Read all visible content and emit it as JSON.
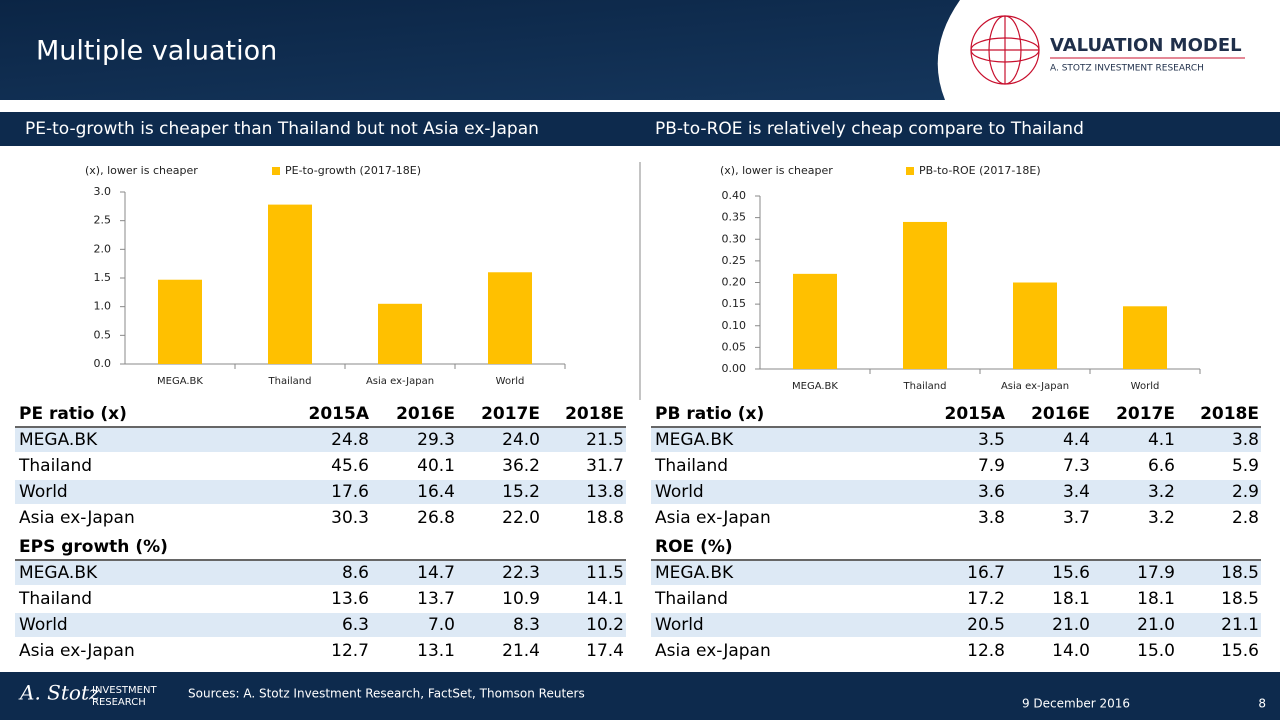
{
  "header": {
    "title": "Multiple valuation",
    "brand": "VALUATION MODEL",
    "brand_sub": "A. STOTZ INVESTMENT RESEARCH"
  },
  "chart_data": [
    {
      "type": "bar",
      "title": "PE-to-growth is cheaper than Thailand but not Asia ex-Japan",
      "y_label": "(x), lower is cheaper",
      "categories": [
        "MEGA.BK",
        "Thailand",
        "Asia ex-Japan",
        "World"
      ],
      "series": [
        {
          "name": "PE-to-growth (2017-18E)",
          "color": "#ffc000",
          "values": [
            1.47,
            2.78,
            1.05,
            1.6
          ]
        }
      ],
      "ylim": [
        0,
        3
      ],
      "yticks": [
        {
          "value": 0,
          "label": "0.0"
        },
        0.5,
        {
          "value": 1,
          "label": "1.0"
        },
        1.5,
        {
          "value": 2,
          "label": "2.0"
        },
        2.5,
        {
          "value": 3,
          "label": "3.0"
        }
      ]
    },
    {
      "type": "bar",
      "title": "PB-to-ROE is relatively cheap compare to Thailand",
      "y_label": "(x), lower is cheaper",
      "categories": [
        "MEGA.BK",
        "Thailand",
        "Asia ex-Japan",
        "World"
      ],
      "series": [
        {
          "name": "PB-to-ROE (2017-18E)",
          "color": "#ffc000",
          "values": [
            0.22,
            0.34,
            0.2,
            0.145
          ]
        }
      ],
      "ylim": [
        0,
        0.4
      ],
      "yticks": [
        {
          "value": 0,
          "label": "0.00"
        },
        0.05,
        {
          "value": 0.1,
          "label": "0.10"
        },
        0.15,
        {
          "value": 0.2,
          "label": "0.20"
        },
        0.25,
        {
          "value": 0.3,
          "label": "0.30"
        },
        0.35,
        {
          "value": 0.4,
          "label": "0.40"
        }
      ]
    }
  ],
  "tables": [
    {
      "sections": [
        {
          "header": [
            "PE ratio (x)",
            "2015A",
            "2016E",
            "2017E",
            "2018E"
          ],
          "rows": [
            [
              "MEGA.BK",
              "24.8",
              "29.3",
              "24.0",
              "21.5"
            ],
            [
              "Thailand",
              "45.6",
              "40.1",
              "36.2",
              "31.7"
            ],
            [
              "World",
              "17.6",
              "16.4",
              "15.2",
              "13.8"
            ],
            [
              "Asia ex-Japan",
              "30.3",
              "26.8",
              "22.0",
              "18.8"
            ]
          ]
        },
        {
          "header": [
            "EPS growth (%)"
          ],
          "rows": [
            [
              "MEGA.BK",
              "8.6",
              "14.7",
              "22.3",
              "11.5"
            ],
            [
              "Thailand",
              "13.6",
              "13.7",
              "10.9",
              "14.1"
            ],
            [
              "World",
              "6.3",
              "7.0",
              "8.3",
              "10.2"
            ],
            [
              "Asia ex-Japan",
              "12.7",
              "13.1",
              "21.4",
              "17.4"
            ]
          ]
        }
      ]
    },
    {
      "sections": [
        {
          "header": [
            "PB ratio (x)",
            "2015A",
            "2016E",
            "2017E",
            "2018E"
          ],
          "rows": [
            [
              "MEGA.BK",
              "3.5",
              "4.4",
              "4.1",
              "3.8"
            ],
            [
              "Thailand",
              "7.9",
              "7.3",
              "6.6",
              "5.9"
            ],
            [
              "World",
              "3.6",
              "3.4",
              "3.2",
              "2.9"
            ],
            [
              "Asia ex-Japan",
              "3.8",
              "3.7",
              "3.2",
              "2.8"
            ]
          ]
        },
        {
          "header": [
            "ROE (%)"
          ],
          "rows": [
            [
              "MEGA.BK",
              "16.7",
              "15.6",
              "17.9",
              "18.5"
            ],
            [
              "Thailand",
              "17.2",
              "18.1",
              "18.1",
              "18.5"
            ],
            [
              "World",
              "20.5",
              "21.0",
              "21.0",
              "21.1"
            ],
            [
              "Asia ex-Japan",
              "12.8",
              "14.0",
              "15.0",
              "15.6"
            ]
          ]
        }
      ]
    }
  ],
  "footer": {
    "logo_name": "A. Stotz",
    "logo_line1": "INVESTMENT",
    "logo_line2": "RESEARCH",
    "sources": "Sources: A. Stotz Investment Research, FactSet, Thomson Reuters",
    "date": "9 December 2016",
    "page": "8"
  }
}
